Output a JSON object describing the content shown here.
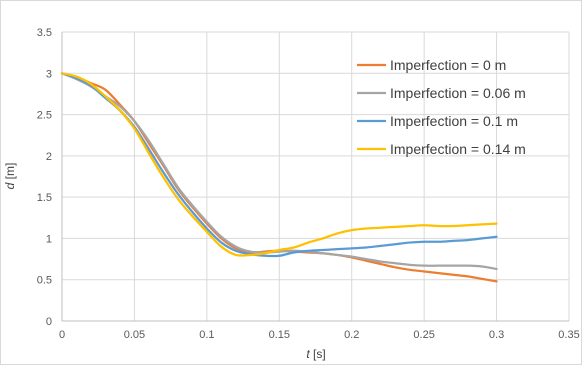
{
  "chart_data": {
    "type": "line",
    "xlabel_var": "t",
    "xlabel_unit": " [s]",
    "ylabel_var": "d",
    "ylabel_unit": " [m]",
    "xlim": [
      0,
      0.35
    ],
    "ylim": [
      0,
      3.5
    ],
    "xticks": [
      0,
      0.05,
      0.1,
      0.15,
      0.2,
      0.25,
      0.3,
      0.35
    ],
    "xtick_labels": [
      "0",
      "0.05",
      "0.1",
      "0.15",
      "0.2",
      "0.25",
      "0.3",
      "0.35"
    ],
    "yticks": [
      0,
      0.5,
      1,
      1.5,
      2,
      2.5,
      3,
      3.5
    ],
    "ytick_labels": [
      "0",
      "0.5",
      "1",
      "1.5",
      "2",
      "2.5",
      "3",
      "3.5"
    ],
    "grid": true,
    "legend_position": "top-right",
    "series": [
      {
        "name": "Imperfection = 0 m",
        "color": "#ED7D31",
        "x": [
          0,
          0.01,
          0.02,
          0.03,
          0.04,
          0.05,
          0.06,
          0.07,
          0.08,
          0.09,
          0.1,
          0.11,
          0.12,
          0.13,
          0.14,
          0.15,
          0.16,
          0.17,
          0.18,
          0.19,
          0.2,
          0.21,
          0.22,
          0.23,
          0.24,
          0.25,
          0.26,
          0.27,
          0.28,
          0.29,
          0.3
        ],
        "y": [
          3.0,
          2.95,
          2.88,
          2.8,
          2.62,
          2.42,
          2.15,
          1.88,
          1.6,
          1.38,
          1.18,
          1.0,
          0.88,
          0.83,
          0.84,
          0.85,
          0.84,
          0.83,
          0.82,
          0.8,
          0.77,
          0.73,
          0.69,
          0.65,
          0.62,
          0.6,
          0.58,
          0.56,
          0.54,
          0.51,
          0.48
        ]
      },
      {
        "name": "Imperfection = 0.06 m",
        "color": "#A5A5A5",
        "x": [
          0,
          0.01,
          0.02,
          0.03,
          0.04,
          0.05,
          0.06,
          0.07,
          0.08,
          0.09,
          0.1,
          0.11,
          0.12,
          0.13,
          0.14,
          0.15,
          0.16,
          0.17,
          0.18,
          0.19,
          0.2,
          0.21,
          0.22,
          0.23,
          0.24,
          0.25,
          0.26,
          0.27,
          0.28,
          0.29,
          0.3
        ],
        "y": [
          3.0,
          2.93,
          2.84,
          2.72,
          2.6,
          2.42,
          2.18,
          1.9,
          1.62,
          1.4,
          1.2,
          1.02,
          0.9,
          0.84,
          0.83,
          0.84,
          0.85,
          0.84,
          0.82,
          0.8,
          0.78,
          0.75,
          0.72,
          0.7,
          0.68,
          0.67,
          0.67,
          0.67,
          0.67,
          0.66,
          0.63
        ]
      },
      {
        "name": "Imperfection = 0.1 m",
        "color": "#5B9BD5",
        "x": [
          0,
          0.01,
          0.02,
          0.03,
          0.04,
          0.05,
          0.06,
          0.07,
          0.08,
          0.09,
          0.1,
          0.11,
          0.12,
          0.13,
          0.14,
          0.15,
          0.16,
          0.17,
          0.18,
          0.19,
          0.2,
          0.21,
          0.22,
          0.23,
          0.24,
          0.25,
          0.26,
          0.27,
          0.28,
          0.29,
          0.3
        ],
        "y": [
          3.0,
          2.94,
          2.85,
          2.7,
          2.55,
          2.35,
          2.08,
          1.8,
          1.54,
          1.32,
          1.12,
          0.95,
          0.85,
          0.81,
          0.79,
          0.79,
          0.83,
          0.85,
          0.86,
          0.87,
          0.88,
          0.89,
          0.91,
          0.93,
          0.95,
          0.96,
          0.96,
          0.97,
          0.98,
          1.0,
          1.02
        ]
      },
      {
        "name": "Imperfection = 0.14 m",
        "color": "#FFC000",
        "x": [
          0,
          0.01,
          0.02,
          0.03,
          0.04,
          0.05,
          0.06,
          0.07,
          0.08,
          0.09,
          0.1,
          0.11,
          0.12,
          0.13,
          0.14,
          0.15,
          0.16,
          0.17,
          0.18,
          0.19,
          0.2,
          0.21,
          0.22,
          0.23,
          0.24,
          0.25,
          0.26,
          0.27,
          0.28,
          0.29,
          0.3
        ],
        "y": [
          3.0,
          2.96,
          2.87,
          2.72,
          2.55,
          2.33,
          2.03,
          1.74,
          1.48,
          1.27,
          1.08,
          0.9,
          0.8,
          0.8,
          0.82,
          0.86,
          0.89,
          0.95,
          1.0,
          1.06,
          1.1,
          1.12,
          1.13,
          1.14,
          1.15,
          1.16,
          1.15,
          1.15,
          1.16,
          1.17,
          1.18
        ]
      }
    ]
  }
}
